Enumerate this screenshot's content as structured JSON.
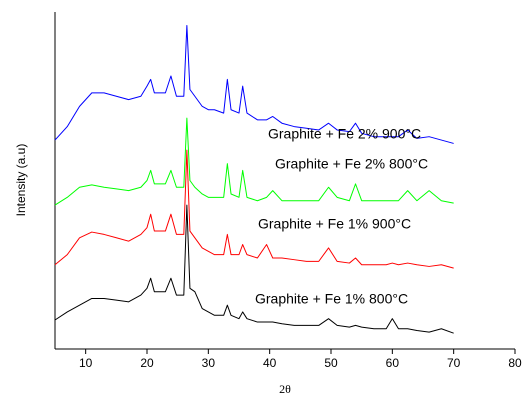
{
  "chart_data": {
    "type": "line",
    "y_label": "Intensity (a.u)",
    "x_label": "2θ",
    "xlim": [
      5,
      80
    ],
    "xticks": [
      10,
      20,
      30,
      40,
      50,
      60,
      70,
      80
    ],
    "ylim": [
      0,
      100
    ],
    "x": [
      5,
      7,
      9,
      11,
      13,
      15,
      17,
      19,
      20,
      20.6,
      21.2,
      23,
      23.9,
      24.8,
      26,
      26.5,
      27,
      27.8,
      29,
      30,
      31,
      32.5,
      33.1,
      33.7,
      35,
      35.6,
      36.3,
      38,
      39.5,
      40.5,
      42,
      44,
      46,
      48,
      49.6,
      51,
      53,
      54,
      55,
      57,
      59,
      60,
      61,
      62.5,
      64,
      66,
      68,
      70
    ],
    "series": [
      {
        "name": "Graphite + Fe 1% 800°C",
        "color": "#000000",
        "values": [
          8.6,
          11,
          13,
          15,
          15,
          14.5,
          14,
          16,
          18,
          21,
          17,
          17,
          21,
          16,
          16,
          42.7,
          18,
          17,
          12,
          11,
          10,
          10,
          13,
          10,
          9,
          11,
          9,
          8,
          8,
          8,
          7.5,
          7,
          7,
          7,
          9,
          7,
          6.5,
          7,
          6.5,
          6,
          6,
          9,
          6,
          6,
          5.5,
          5,
          6,
          4.7
        ]
      },
      {
        "name": "Graphite + Fe 1% 900°C",
        "color": "#ff0000",
        "values": [
          25,
          28,
          33,
          34.7,
          34,
          33,
          32,
          34,
          36,
          40,
          35,
          35,
          40,
          34,
          34,
          59,
          35,
          33,
          30,
          29,
          28,
          28,
          34,
          28,
          28,
          31,
          28,
          27,
          31,
          27,
          27,
          26.5,
          26,
          26,
          30,
          26,
          25.5,
          27,
          25,
          25,
          25,
          25.5,
          25,
          25.5,
          25,
          24.5,
          25,
          24
        ]
      },
      {
        "name": "Graphite + Fe 2% 800°C",
        "color": "#00ff00",
        "values": [
          42.7,
          45,
          48,
          48.7,
          48,
          47.5,
          47,
          48,
          50,
          53,
          49,
          49,
          53,
          48,
          48,
          68.5,
          50,
          48,
          46,
          45,
          45,
          45,
          55,
          46,
          45,
          53,
          45,
          44,
          45,
          47,
          44,
          44,
          44,
          44,
          48,
          45,
          44,
          49,
          44,
          44,
          44,
          44,
          44,
          47,
          44,
          47,
          44,
          43.3
        ]
      },
      {
        "name": "Graphite + Fe 2% 900°C",
        "color": "#0000ff",
        "values": [
          62,
          66,
          72,
          76,
          76,
          75,
          74,
          75,
          78,
          80,
          76,
          76,
          81,
          75,
          75,
          96,
          77,
          75,
          72,
          71,
          71,
          70,
          80,
          71,
          70,
          78,
          70,
          68,
          68,
          69,
          67,
          66,
          65.5,
          65,
          67,
          65,
          64.5,
          67,
          64,
          63,
          63,
          63,
          63,
          65,
          62.5,
          63,
          62,
          61
        ]
      }
    ]
  }
}
